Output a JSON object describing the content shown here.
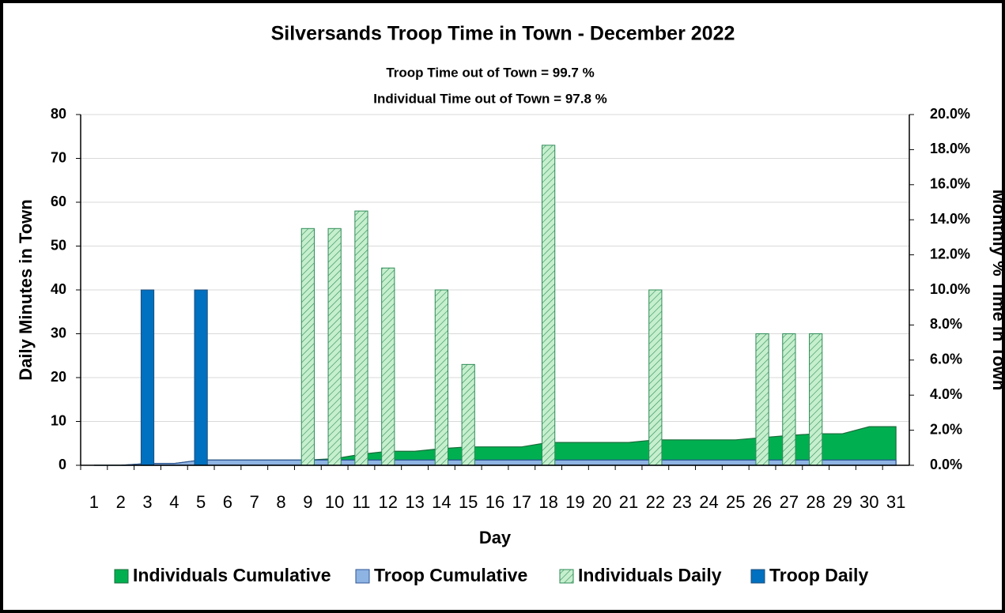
{
  "chart_data": {
    "type": "bar",
    "title": "Silversands Troop Time in Town - December 2022",
    "annotations": [
      "Troop Time out of Town = 99.7 %",
      "Individual Time out of Town = 97.8 %"
    ],
    "x_label": "Day",
    "y_label": "Daily Minutes in Town",
    "y2_label": "Monthly % Time in Town",
    "categories": [
      "1",
      "2",
      "3",
      "4",
      "5",
      "6",
      "7",
      "8",
      "9",
      "10",
      "11",
      "12",
      "13",
      "14",
      "15",
      "16",
      "17",
      "18",
      "19",
      "20",
      "21",
      "22",
      "23",
      "24",
      "25",
      "26",
      "27",
      "28",
      "29",
      "30",
      "31"
    ],
    "ylim": [
      0,
      80
    ],
    "yticks": [
      0,
      10,
      20,
      30,
      40,
      50,
      60,
      70,
      80
    ],
    "y2lim": [
      0,
      20
    ],
    "y2ticks": [
      {
        "value": 0,
        "label": "0.0%"
      },
      {
        "value": 2,
        "label": "2.0%"
      },
      {
        "value": 4,
        "label": "4.0%"
      },
      {
        "value": 6,
        "label": "6.0%"
      },
      {
        "value": 8,
        "label": "8.0%"
      },
      {
        "value": 10,
        "label": "10.0%"
      },
      {
        "value": 12,
        "label": "12.0%"
      },
      {
        "value": 14,
        "label": "14.0%"
      },
      {
        "value": 16,
        "label": "16.0%"
      },
      {
        "value": 18,
        "label": "18.0%"
      },
      {
        "value": 20,
        "label": "20.0%"
      }
    ],
    "grid": true,
    "legend": "bottom",
    "series": [
      {
        "name": "Individuals Cumulative",
        "kind": "area",
        "axis": "y2",
        "color": "#00b050",
        "stroke": "#1a6b3a",
        "values": [
          0,
          0,
          0.1,
          0.1,
          0.3,
          0.3,
          0.3,
          0.3,
          0.3,
          0.38,
          0.63,
          0.8,
          0.8,
          0.95,
          1.05,
          1.05,
          1.05,
          1.3,
          1.3,
          1.3,
          1.3,
          1.45,
          1.45,
          1.45,
          1.45,
          1.58,
          1.7,
          1.8,
          1.8,
          2.2,
          2.2
        ]
      },
      {
        "name": "Troop Cumulative",
        "kind": "area",
        "axis": "y2",
        "color": "#8eb4e3",
        "stroke": "#2f5597",
        "values": [
          0,
          0,
          0.1,
          0.1,
          0.3,
          0.3,
          0.3,
          0.3,
          0.3,
          0.3,
          0.3,
          0.3,
          0.3,
          0.3,
          0.3,
          0.3,
          0.3,
          0.3,
          0.3,
          0.3,
          0.3,
          0.3,
          0.3,
          0.3,
          0.3,
          0.3,
          0.3,
          0.3,
          0.3,
          0.3,
          0.3
        ]
      },
      {
        "name": "Individuals Daily",
        "kind": "hatched",
        "color": "#c6efce",
        "stroke": "#2e8b57",
        "values": [
          0,
          0,
          0,
          0,
          0,
          0,
          0,
          0,
          54,
          54,
          58,
          45,
          0,
          40,
          23,
          0,
          0,
          73,
          0,
          0,
          0,
          40,
          0,
          0,
          0,
          30,
          30,
          30,
          0,
          0,
          0
        ]
      },
      {
        "name": "Troop Daily",
        "kind": "solid",
        "color": "#0070c0",
        "stroke": "#1f4e79",
        "values": [
          0,
          0,
          40,
          0,
          40,
          0,
          0,
          0,
          0,
          0,
          0,
          0,
          0,
          0,
          0,
          0,
          0,
          0,
          0,
          0,
          0,
          0,
          0,
          0,
          0,
          0,
          0,
          0,
          0,
          0,
          0
        ]
      }
    ]
  }
}
